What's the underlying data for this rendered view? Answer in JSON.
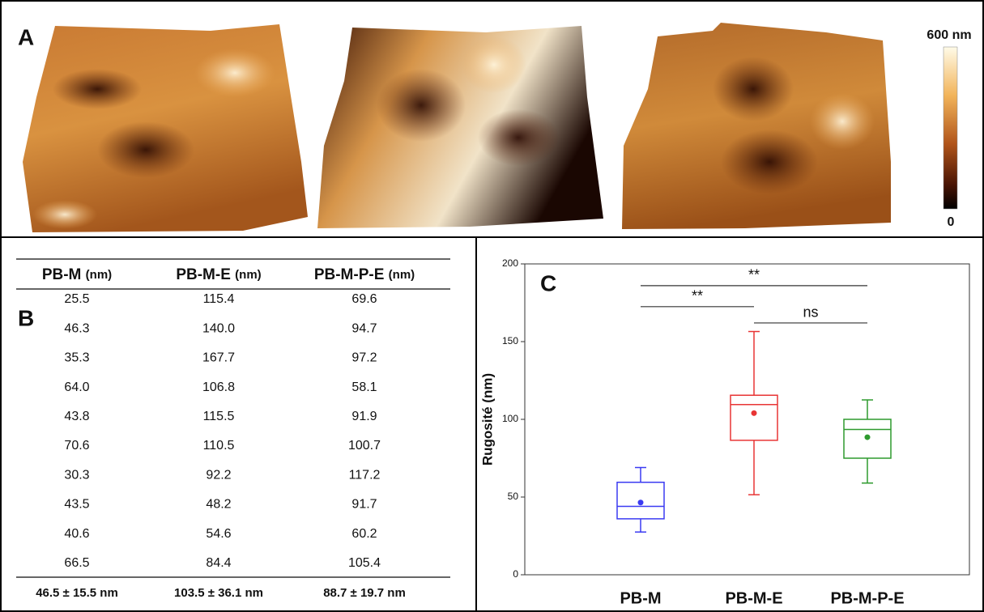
{
  "panel_a": {
    "label": "A",
    "scale_max": "600 nm",
    "scale_min": "0"
  },
  "table": {
    "label": "B",
    "columns": [
      {
        "name": "PB-M",
        "unit": "(nm)"
      },
      {
        "name": "PB-M-E",
        "unit": "(nm)"
      },
      {
        "name": "PB-M-P-E",
        "unit": "(nm)"
      }
    ],
    "rows": [
      [
        "25.5",
        "115.4",
        "69.6"
      ],
      [
        "46.3",
        "140.0",
        "94.7"
      ],
      [
        "35.3",
        "167.7",
        "97.2"
      ],
      [
        "64.0",
        "106.8",
        "58.1"
      ],
      [
        "43.8",
        "115.5",
        "91.9"
      ],
      [
        "70.6",
        "110.5",
        "100.7"
      ],
      [
        "30.3",
        "92.2",
        "117.2"
      ],
      [
        "43.5",
        "48.2",
        "91.7"
      ],
      [
        "40.6",
        "54.6",
        "60.2"
      ],
      [
        "66.5",
        "84.4",
        "105.4"
      ]
    ],
    "summary": [
      "46.5 ± 15.5 nm",
      "103.5 ± 36.1 nm",
      "88.7 ± 19.7 nm"
    ]
  },
  "chart_data": {
    "type": "box",
    "label": "C",
    "ylabel": "Rugosité (nm)",
    "ylim": [
      0,
      200
    ],
    "yticks": [
      0,
      50,
      100,
      150,
      200
    ],
    "series": [
      {
        "name": "PB-M",
        "color": "#3b3bf2",
        "min": 27.5,
        "q1": 36,
        "median": 44,
        "q3": 59.5,
        "max": 69,
        "mean": 46.5
      },
      {
        "name": "PB-M-E",
        "color": "#e83535",
        "min": 51.5,
        "q1": 86.5,
        "median": 109.5,
        "q3": 115.5,
        "max": 156.5,
        "mean": 104
      },
      {
        "name": "PB-M-P-E",
        "color": "#2e9a2e",
        "min": 59,
        "q1": 75,
        "median": 93.5,
        "q3": 100,
        "max": 112.5,
        "mean": 88.5
      }
    ],
    "annotations": [
      {
        "text": "**",
        "from": 0,
        "to": 2,
        "y": 186
      },
      {
        "text": "**",
        "from": 0,
        "to": 1,
        "y": 172.5
      },
      {
        "text": "ns",
        "from": 1,
        "to": 2,
        "y": 162
      }
    ]
  }
}
